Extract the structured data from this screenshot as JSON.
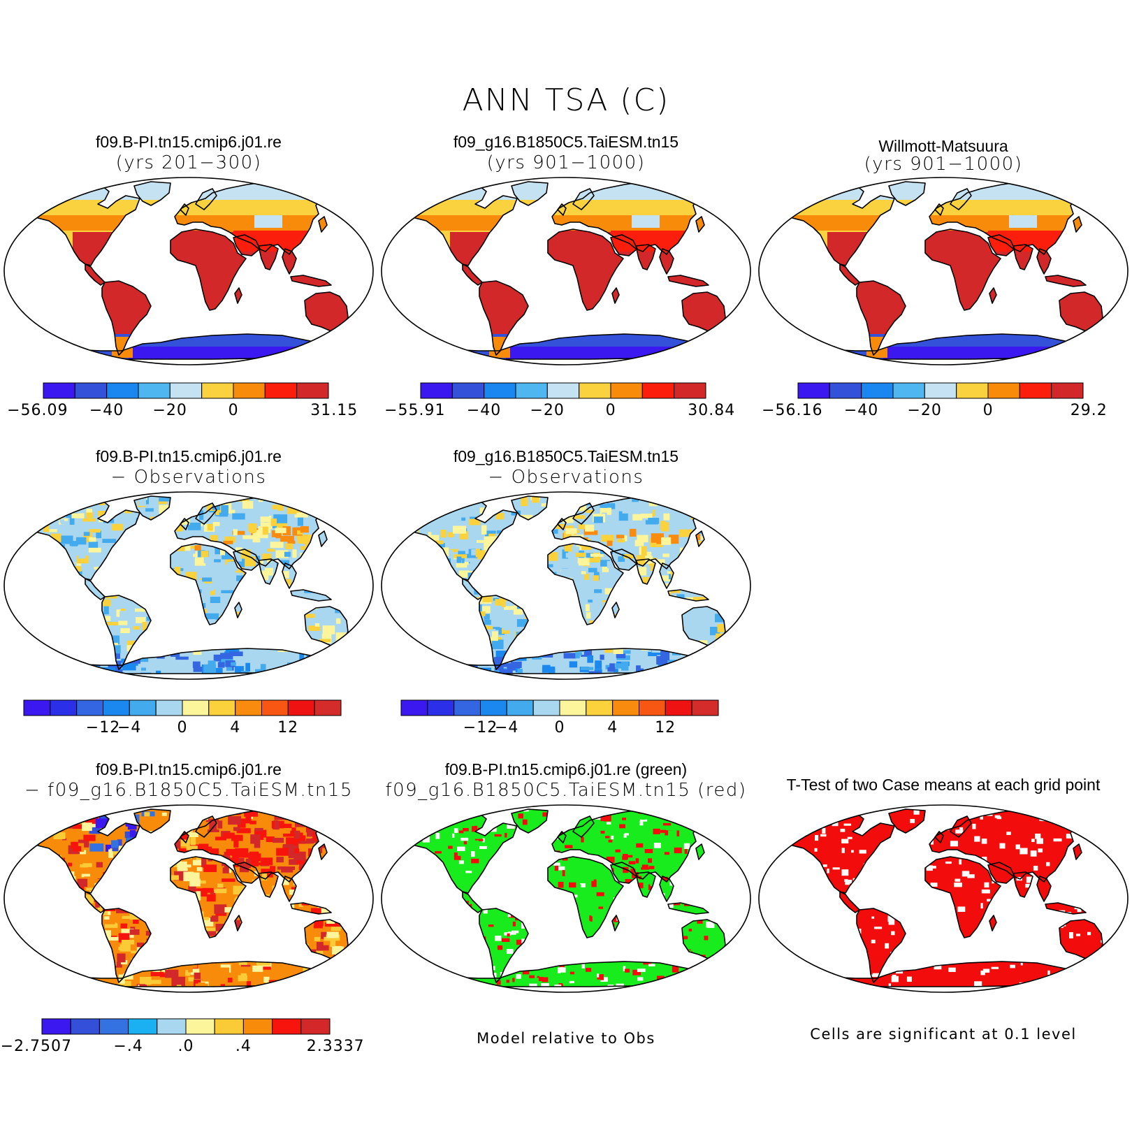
{
  "title": "ANN TSA (C)",
  "colors": {
    "abs": [
      "#3b17f0",
      "#3451d9",
      "#1a86f0",
      "#4fb6ef",
      "#c4e2f2",
      "#fad13e",
      "#f98b0b",
      "#fb1e0c",
      "#d3282a"
    ],
    "diff": [
      "#3b17f0",
      "#2b2fe7",
      "#3366e0",
      "#1a88ef",
      "#44aaee",
      "#a9d7f0",
      "#fdf59b",
      "#fbd23c",
      "#f98c0f",
      "#f85713",
      "#ee1212",
      "#d42b2b"
    ],
    "bias": [
      "#3b17f0",
      "#3450d9",
      "#3372e0",
      "#1ab0f2",
      "#a9d7f0",
      "#fdf59b",
      "#fbca37",
      "#f98b0b",
      "#f7140c",
      "#d3282a"
    ],
    "land_low": "#f0c233",
    "green": "#19ec1c",
    "red": "#f30c0c"
  },
  "panels": [
    {
      "title1": "f09.B-PI.tn15.cmip6.j01.re",
      "title2": "(yrs 201−300)",
      "scheme": "abs",
      "fill": "field",
      "colorbar": {
        "ticks": [
          "−56.09",
          "−40",
          "−20",
          "0",
          "31.15"
        ]
      }
    },
    {
      "title1": "f09_g16.B1850C5.TaiESM.tn15",
      "title2": "(yrs 901−1000)",
      "scheme": "abs",
      "fill": "field",
      "colorbar": {
        "ticks": [
          "−55.91",
          "−40",
          "−20",
          "0",
          "30.84"
        ]
      }
    },
    {
      "title1": "Willmott-Matsuura",
      "title2": "(yrs 901−1000)",
      "scheme": "abs",
      "fill": "field",
      "colorbar": {
        "ticks": [
          "−56.16",
          "−40",
          "−20",
          "0",
          "29.2"
        ]
      }
    },
    {
      "title1": "f09.B-PI.tn15.cmip6.j01.re",
      "title2": "− Observations",
      "scheme": "diff",
      "fill": "diff",
      "colorbar": {
        "ticks": [
          "−12",
          "−4",
          "0",
          "4",
          "12"
        ]
      }
    },
    {
      "title1": "f09_g16.B1850C5.TaiESM.tn15",
      "title2": "− Observations",
      "scheme": "diff",
      "fill": "diff",
      "colorbar": {
        "ticks": [
          "−12",
          "−4",
          "0",
          "4",
          "12"
        ]
      }
    },
    {
      "title1": "f09.B-PI.tn15.cmip6.j01.re",
      "title2": "− f09_g16.B1850C5.TaiESM.tn15",
      "scheme": "bias",
      "fill": "bias",
      "colorbar": {
        "ticks": [
          "−2.7507",
          "−.4",
          ".0",
          ".4",
          "2.3337"
        ]
      }
    },
    {
      "title1": "f09.B-PI.tn15.cmip6.j01.re (green)",
      "title2": "f09_g16.B1850C5.TaiESM.tn15 (red)",
      "scheme": "rg",
      "fill": "rg",
      "note": "Model relative to Obs"
    },
    {
      "title1": "T-Test of two Case means at each grid point",
      "title2": "",
      "scheme": "sig",
      "fill": "sig",
      "note": "Cells are significant at 0.1 level"
    }
  ]
}
